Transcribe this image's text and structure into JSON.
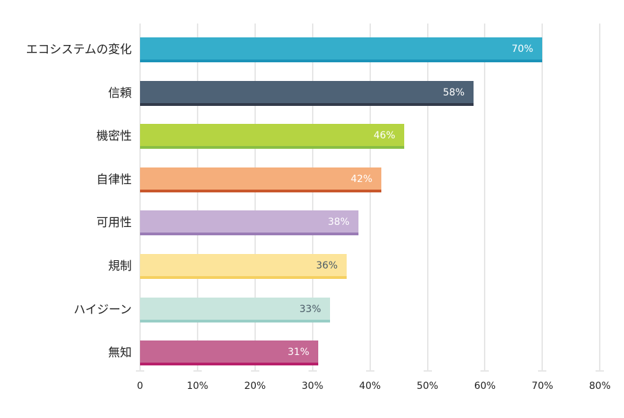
{
  "chart_data": {
    "type": "bar",
    "orientation": "horizontal",
    "title": "",
    "xlabel": "",
    "ylabel": "",
    "xlim": [
      0,
      80
    ],
    "grid": true,
    "legend": "none",
    "x_ticks": [
      "0",
      "10%",
      "20%",
      "30%",
      "40%",
      "50%",
      "60%",
      "70%",
      "80%"
    ],
    "categories": [
      "エコシステムの変化",
      "信頼",
      "機密性",
      "自律性",
      "可用性",
      "規制",
      "ハイジーン",
      "無知"
    ],
    "values": [
      70,
      58,
      46,
      42,
      38,
      36,
      33,
      31
    ],
    "value_labels": [
      "70%",
      "58%",
      "46%",
      "42%",
      "38%",
      "36%",
      "33%",
      "31%"
    ],
    "bar_colors": [
      "#35aecb",
      "#4e6276",
      "#b5d442",
      "#f5ae7b",
      "#c6b0d5",
      "#fce49a",
      "#c8e5dd",
      "#c56793"
    ],
    "edge_colors": [
      "#1a93b8",
      "#323a4a",
      "#89bf44",
      "#c9572b",
      "#9a7cb6",
      "#f5d060",
      "#98cec6",
      "#b81f6a"
    ],
    "label_colors": [
      "#ffffff",
      "#ffffff",
      "#ffffff",
      "#ffffff",
      "#ffffff",
      "#4a5a66",
      "#4a5a66",
      "#ffffff"
    ]
  }
}
